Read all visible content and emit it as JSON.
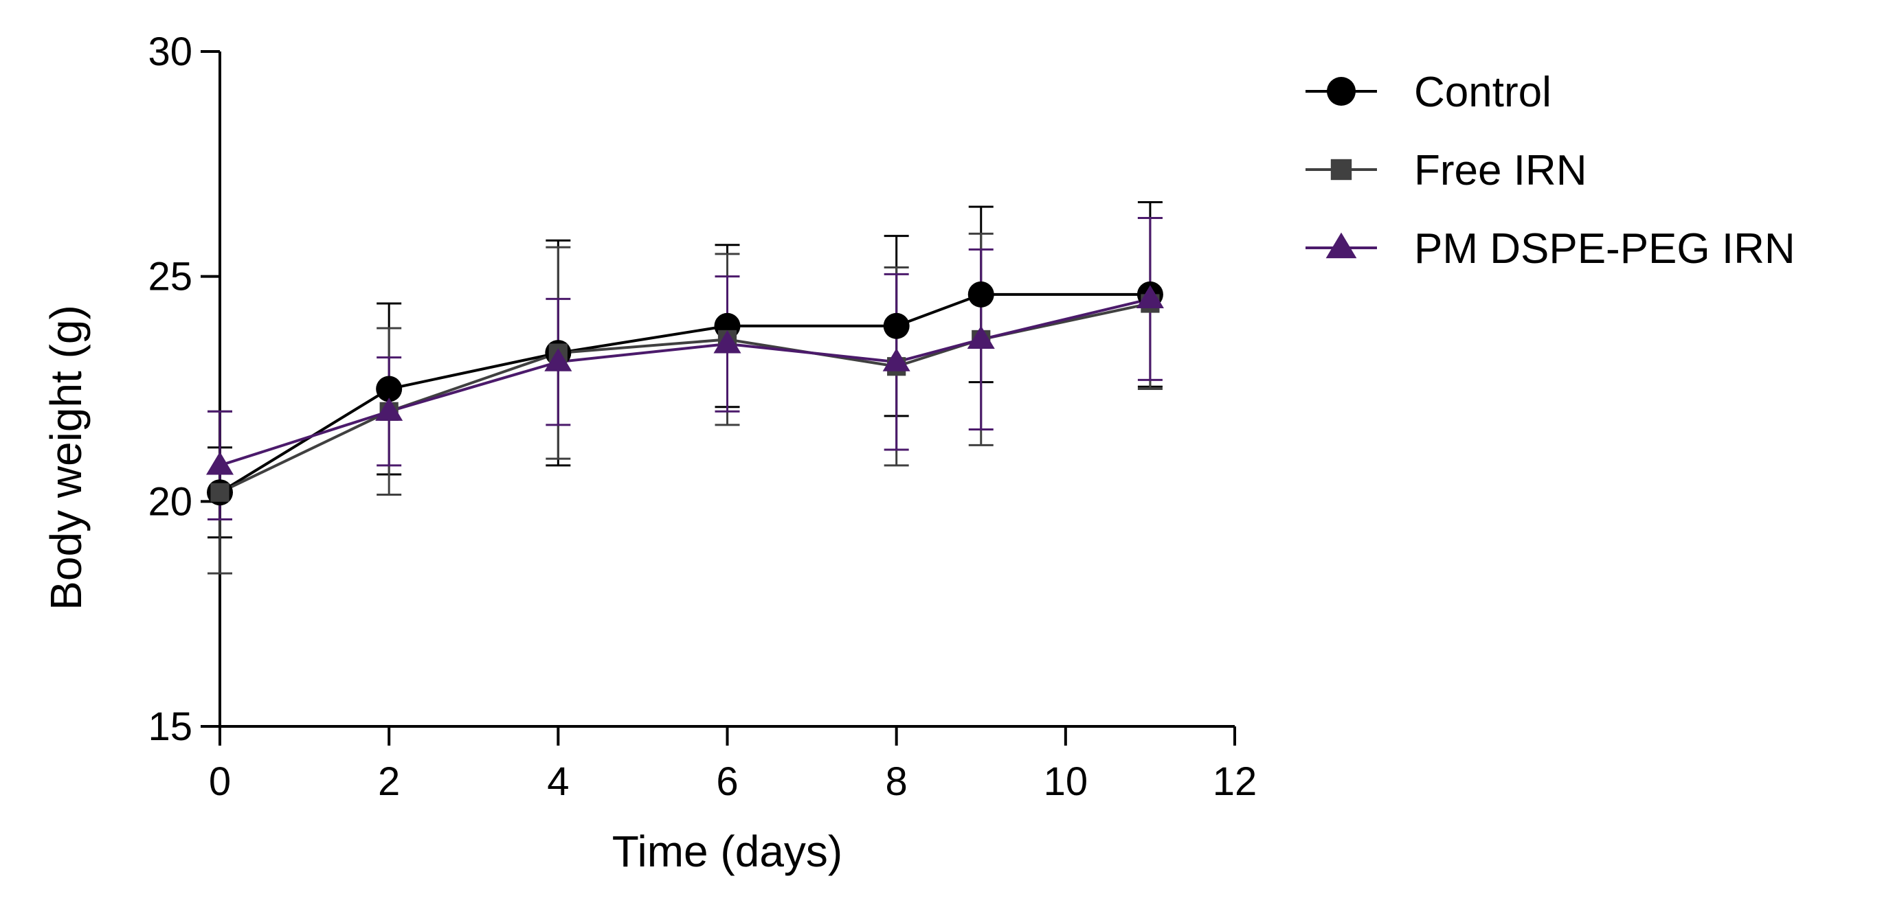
{
  "chart_data": {
    "type": "line",
    "title": "",
    "xlabel": "Time (days)",
    "ylabel": "Body weight (g)",
    "xlim": [
      0,
      12
    ],
    "ylim": [
      15,
      30
    ],
    "x_ticks": [
      0,
      2,
      4,
      6,
      8,
      10,
      12
    ],
    "x_tick_labels": [
      "0",
      "2",
      "4",
      "6",
      "8",
      "10",
      "12"
    ],
    "y_ticks": [
      15,
      20,
      25,
      30
    ],
    "y_tick_labels": [
      "15",
      "20",
      "25",
      "30"
    ],
    "grid": false,
    "legend_position": "top-right outside",
    "series": [
      {
        "name": "Control",
        "marker": "circle",
        "color": "#000000",
        "x": [
          0,
          2,
          4,
          6,
          8,
          9,
          11
        ],
        "y": [
          20.2,
          22.5,
          23.3,
          23.9,
          23.9,
          24.6,
          24.6
        ],
        "error": [
          1.0,
          1.9,
          2.5,
          1.8,
          2.0,
          1.95,
          2.05
        ]
      },
      {
        "name": "Free IRN",
        "marker": "square",
        "color": "#404040",
        "x": [
          0,
          2,
          4,
          6,
          8,
          9,
          11
        ],
        "y": [
          20.2,
          22.0,
          23.3,
          23.6,
          23.0,
          23.6,
          24.4
        ],
        "error": [
          1.8,
          1.85,
          2.35,
          1.9,
          2.2,
          2.35,
          1.9
        ]
      },
      {
        "name": "PM DSPE-PEG IRN",
        "marker": "triangle",
        "color": "#4b1a6b",
        "x": [
          0,
          2,
          4,
          6,
          8,
          9,
          11
        ],
        "y": [
          20.8,
          22.0,
          23.1,
          23.5,
          23.1,
          23.6,
          24.5
        ],
        "error": [
          1.2,
          1.2,
          1.4,
          1.5,
          1.95,
          2.0,
          1.8
        ]
      }
    ]
  }
}
